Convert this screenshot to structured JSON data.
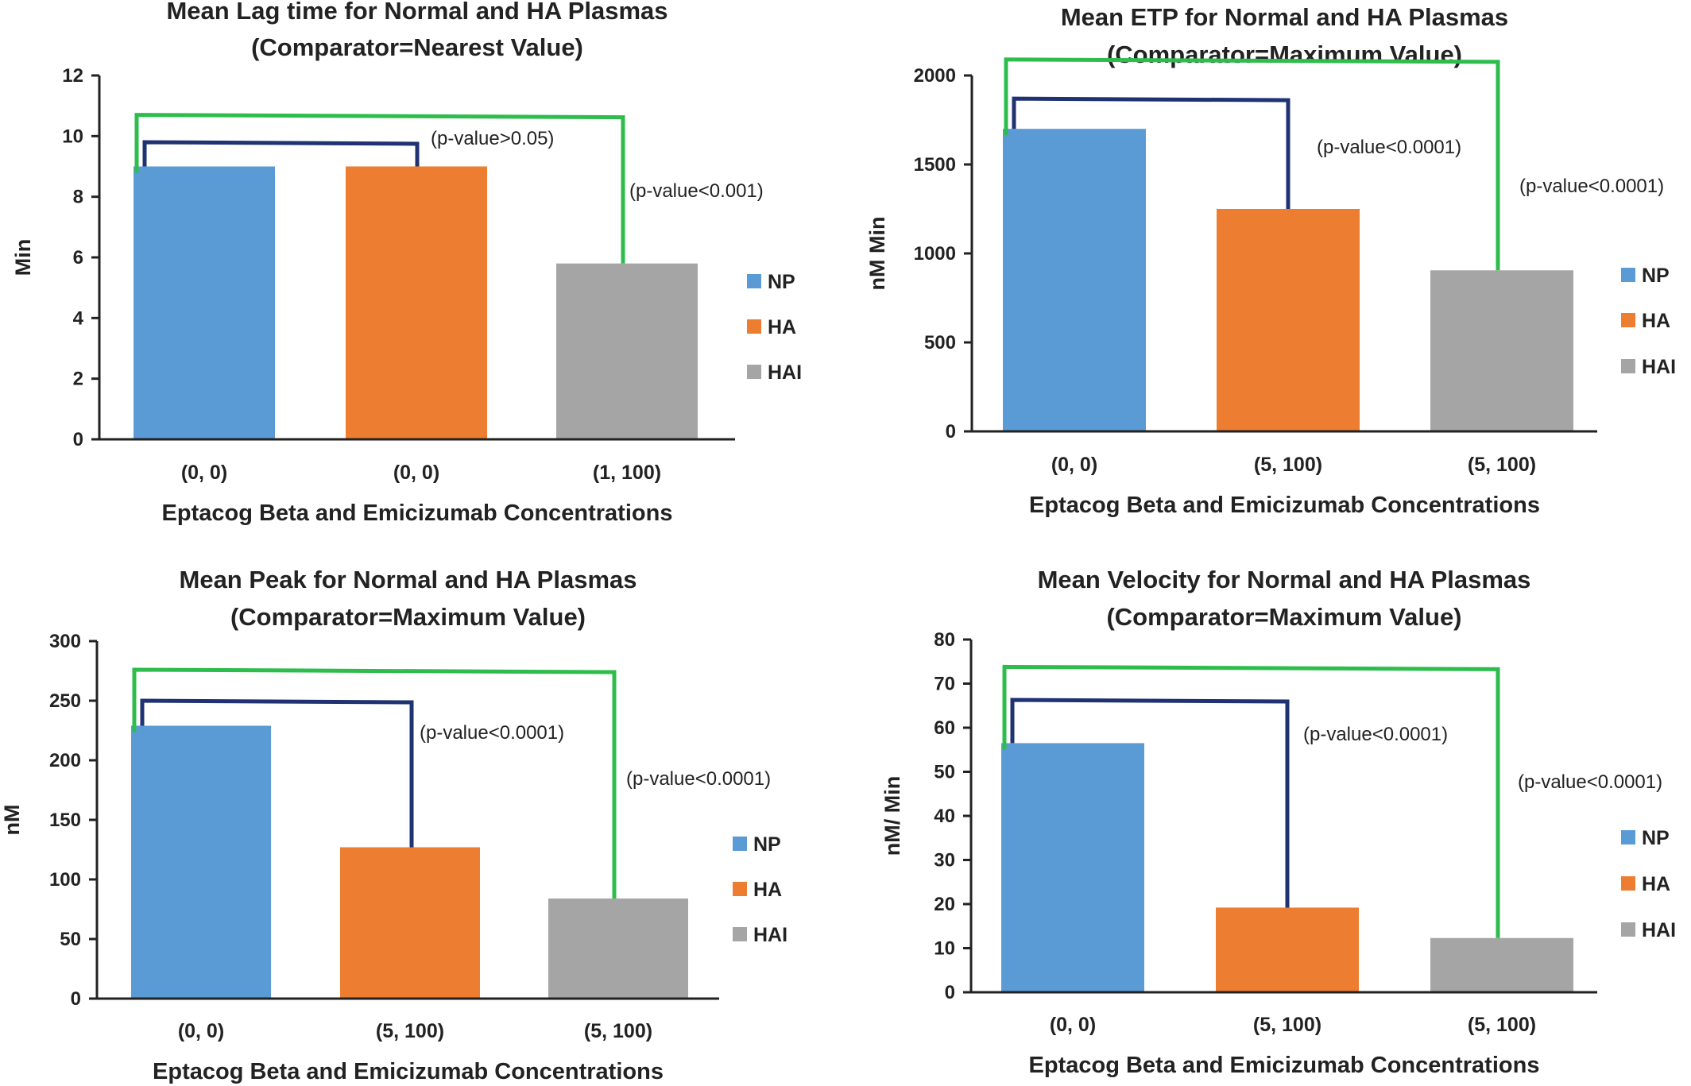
{
  "x_axis_label": "Eptacog Beta and Emicizumab Concentrations",
  "legend": [
    {
      "name": "NP",
      "color": "#5b9bd5"
    },
    {
      "name": "HA",
      "color": "#ed7d31"
    },
    {
      "name": "HAI",
      "color": "#a5a5a5"
    }
  ],
  "bracket_colors": {
    "inner": "#1f3272",
    "outer": "#2ebd4d"
  },
  "chart_data": [
    {
      "type": "bar",
      "title": [
        "Mean Lag time for Normal and HA Plasmas",
        "(Comparator=Nearest Value)"
      ],
      "ylabel": "Min",
      "xlabel": "Eptacog Beta and Emicizumab Concentrations",
      "ylim": [
        0,
        12
      ],
      "yticks": [
        0,
        2,
        4,
        6,
        8,
        10,
        12
      ],
      "categories": [
        "(0, 0)",
        "(0, 0)",
        "(1, 100)"
      ],
      "series": [
        {
          "name": "NP",
          "value": 9
        },
        {
          "name": "HA",
          "value": 9
        },
        {
          "name": "HAI",
          "value": 5.8
        }
      ],
      "comparisons": [
        {
          "label": "(p-value>0.05)",
          "from": 0,
          "to": 1,
          "level": 9.8
        },
        {
          "label": "(p-value<0.001)",
          "from": 0,
          "to": 2,
          "level": 10.7
        }
      ],
      "grid": false,
      "legend_position": "right"
    },
    {
      "type": "bar",
      "title": [
        "Mean ETP for Normal and HA Plasmas",
        "(Comparator=Maximum Value)"
      ],
      "ylabel": "nM Min",
      "xlabel": "Eptacog Beta and Emicizumab Concentrations",
      "ylim": [
        0,
        2000
      ],
      "yticks": [
        0,
        500,
        1000,
        1500,
        2000
      ],
      "categories": [
        "(0, 0)",
        "(5, 100)",
        "(5, 100)"
      ],
      "series": [
        {
          "name": "NP",
          "value": 1700
        },
        {
          "name": "HA",
          "value": 1250
        },
        {
          "name": "HAI",
          "value": 905
        }
      ],
      "comparisons": [
        {
          "label": "(p-value<0.0001)",
          "from": 0,
          "to": 1,
          "level": 1870
        },
        {
          "label": "(p-value<0.0001)",
          "from": 0,
          "to": 2,
          "level": 2090
        }
      ],
      "grid": false,
      "legend_position": "right"
    },
    {
      "type": "bar",
      "title": [
        "Mean Peak for Normal and HA Plasmas",
        "(Comparator=Maximum Value)"
      ],
      "ylabel": "nM",
      "xlabel": "Eptacog Beta and Emicizumab Concentrations",
      "ylim": [
        0,
        300
      ],
      "yticks": [
        0,
        50,
        100,
        150,
        200,
        250,
        300
      ],
      "categories": [
        "(0, 0)",
        "(5, 100)",
        "(5, 100)"
      ],
      "series": [
        {
          "name": "NP",
          "value": 229
        },
        {
          "name": "HA",
          "value": 127
        },
        {
          "name": "HAI",
          "value": 84
        }
      ],
      "comparisons": [
        {
          "label": "(p-value<0.0001)",
          "from": 0,
          "to": 1,
          "level": 250
        },
        {
          "label": "(p-value<0.0001)",
          "from": 0,
          "to": 2,
          "level": 276
        }
      ],
      "grid": false,
      "legend_position": "right"
    },
    {
      "type": "bar",
      "title": [
        "Mean Velocity for Normal and HA Plasmas",
        "(Comparator=Maximum Value)"
      ],
      "ylabel": "nM/ Min",
      "xlabel": "Eptacog Beta and Emicizumab Concentrations",
      "ylim": [
        0,
        80
      ],
      "yticks": [
        0,
        10,
        20,
        30,
        40,
        50,
        60,
        70,
        80
      ],
      "categories": [
        "(0, 0)",
        "(5, 100)",
        "(5, 100)"
      ],
      "series": [
        {
          "name": "NP",
          "value": 56.5
        },
        {
          "name": "HA",
          "value": 19.2
        },
        {
          "name": "HAI",
          "value": 12.3
        }
      ],
      "comparisons": [
        {
          "label": "(p-value<0.0001)",
          "from": 0,
          "to": 1,
          "level": 66.3
        },
        {
          "label": "(p-value<0.0001)",
          "from": 0,
          "to": 2,
          "level": 73.8
        }
      ],
      "grid": false,
      "legend_position": "right"
    }
  ]
}
